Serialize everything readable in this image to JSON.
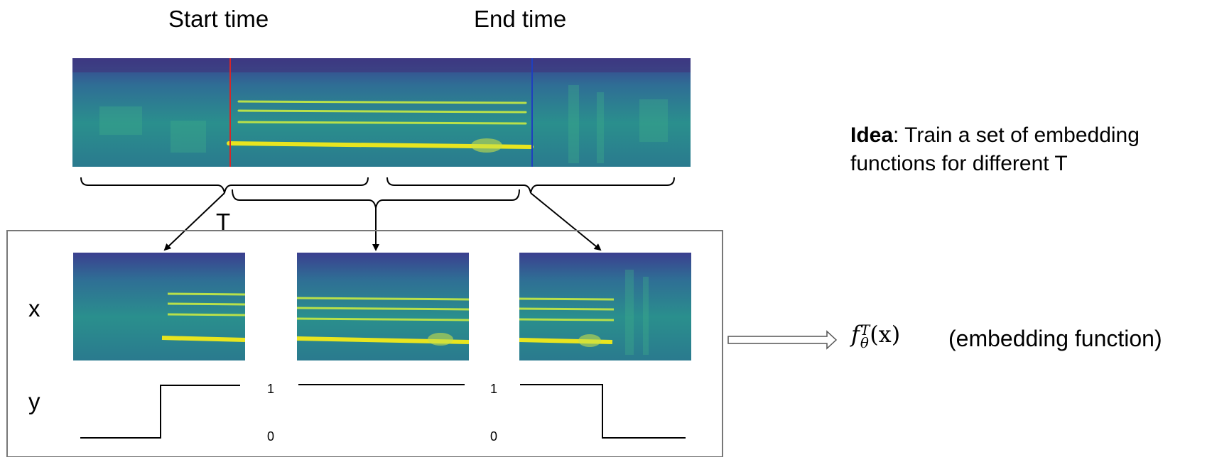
{
  "labels": {
    "start_time": "Start time",
    "end_time": "End time",
    "window_label": "T",
    "x_label": "x",
    "y_label": "y",
    "y_high_1": "1",
    "y_low_1": "0",
    "y_high_2": "1",
    "y_low_2": "0"
  },
  "idea": {
    "bold": "Idea",
    "line1_rest": ": Train a set of embedding",
    "line2": "functions for different T"
  },
  "embedding": {
    "f": "f",
    "theta": "θ",
    "T": "T",
    "arg": "(x)",
    "caption": "(embedding function)"
  },
  "colors": {
    "start_marker": "#d62728",
    "end_marker": "#1f3fbf",
    "box_stroke": "#777777"
  }
}
